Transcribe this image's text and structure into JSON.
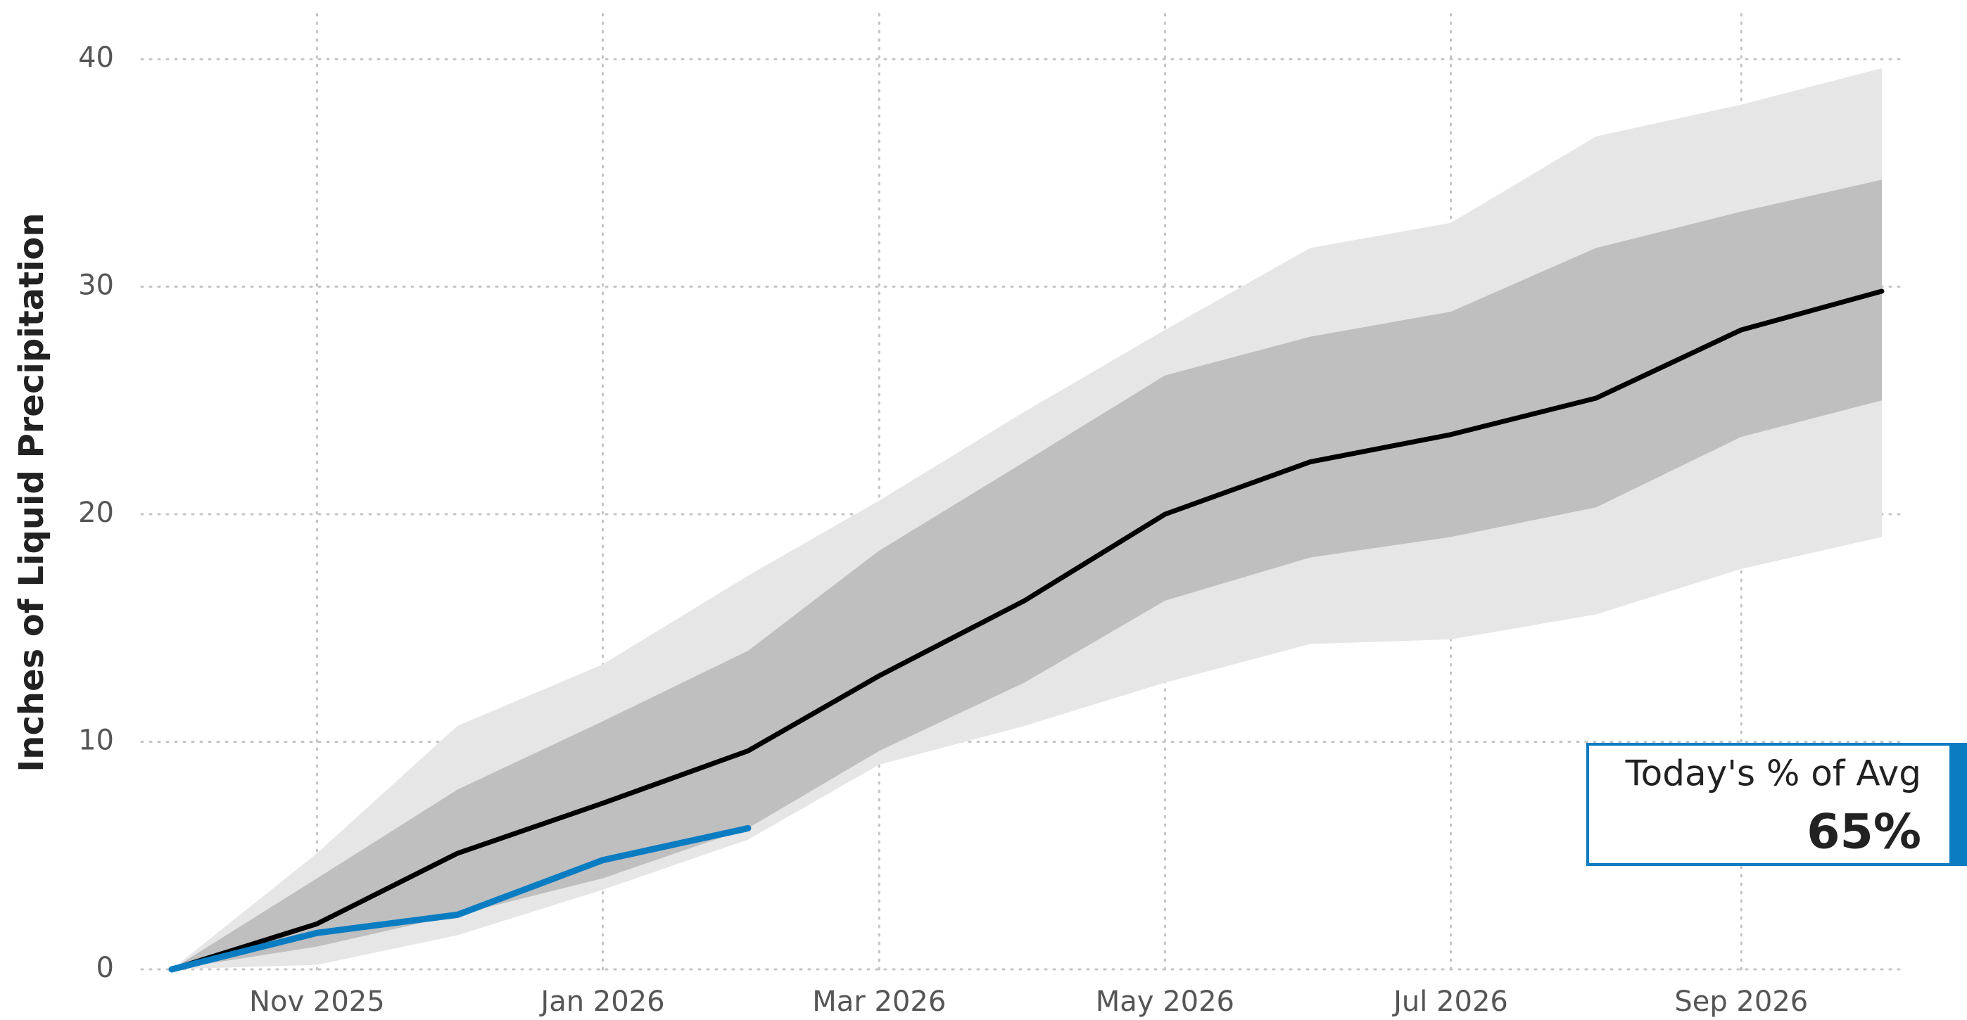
{
  "chart_data": {
    "type": "line",
    "y_label": "Inches of Liquid Precipitation",
    "x": [
      "2025-10",
      "2025-11",
      "2025-12",
      "2026-01",
      "2026-02",
      "2026-03",
      "2026-04",
      "2026-05",
      "2026-06",
      "2026-07",
      "2026-08",
      "2026-09",
      "2026-10"
    ],
    "xlim": [
      "2025-10",
      "2026-10"
    ],
    "xticks": [
      {
        "value": "2025-11",
        "label": "Nov 2025"
      },
      {
        "value": "2026-01",
        "label": "Jan 2026"
      },
      {
        "value": "2026-03",
        "label": "Mar 2026"
      },
      {
        "value": "2026-05",
        "label": "May 2026"
      },
      {
        "value": "2026-07",
        "label": "Jul 2026"
      },
      {
        "value": "2026-09",
        "label": "Sep 2026"
      }
    ],
    "ylim": [
      0,
      40
    ],
    "yticks": [
      0,
      10,
      20,
      30,
      40
    ],
    "grid": true,
    "bands": [
      {
        "color": "#e6e6e6",
        "lower": [
          0,
          0.2,
          1.5,
          3.5,
          5.7,
          9.0,
          10.7,
          12.6,
          14.3,
          14.5,
          15.6,
          17.6,
          19.0
        ],
        "upper": [
          0,
          5.1,
          10.7,
          13.4,
          17.3,
          20.6,
          24.5,
          28.1,
          31.7,
          32.8,
          36.6,
          38.0,
          39.6
        ]
      },
      {
        "color": "#bfbfbf",
        "lower": [
          0,
          1.0,
          2.4,
          4.0,
          6.2,
          9.6,
          12.6,
          16.2,
          18.1,
          19.0,
          20.3,
          23.4,
          25.0
        ],
        "upper": [
          0,
          4.0,
          7.9,
          10.9,
          14.0,
          18.4,
          22.3,
          26.1,
          27.8,
          28.9,
          31.7,
          33.3,
          34.7
        ]
      }
    ],
    "series": [
      {
        "color": "#000000",
        "values": [
          0,
          2.0,
          5.1,
          7.3,
          9.6,
          12.9,
          16.2,
          20.0,
          22.3,
          23.5,
          25.1,
          28.1,
          29.8
        ]
      },
      {
        "color": "#0a7cc2",
        "values": [
          0,
          1.6,
          2.4,
          4.8,
          6.2,
          null,
          null,
          null,
          null,
          null,
          null,
          null,
          null
        ]
      }
    ],
    "stat": {
      "label": "Today's % of Avg",
      "value": "65%"
    }
  }
}
